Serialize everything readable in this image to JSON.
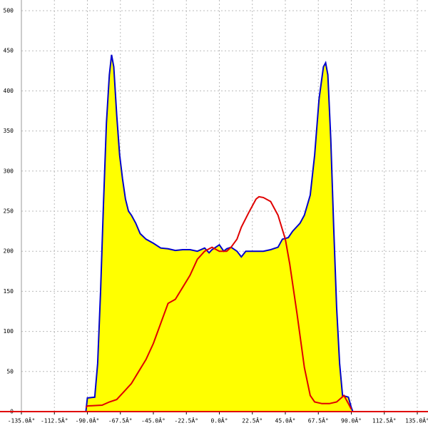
{
  "chart_data": {
    "type": "area",
    "xlim": [
      -135,
      135
    ],
    "ylim": [
      0,
      500
    ],
    "xticks": [
      {
        "value": -135,
        "label": "-135.0Â°"
      },
      {
        "value": -112.5,
        "label": "-112.5Â°"
      },
      {
        "value": -90,
        "label": "-90.0Â°"
      },
      {
        "value": -67.5,
        "label": "-67.5Â°"
      },
      {
        "value": -45,
        "label": "-45.0Â°"
      },
      {
        "value": -22.5,
        "label": "-22.5Â°"
      },
      {
        "value": 0,
        "label": "0.0Â°"
      },
      {
        "value": 22.5,
        "label": "22.5Â°"
      },
      {
        "value": 45,
        "label": "45.0Â°"
      },
      {
        "value": 67.5,
        "label": "67.5Â°"
      },
      {
        "value": 90,
        "label": "90.0Â°"
      },
      {
        "value": 112.5,
        "label": "112.5Â°"
      },
      {
        "value": 135,
        "label": "135.0Â°"
      }
    ],
    "yticks": [
      0,
      50,
      100,
      150,
      200,
      250,
      300,
      350,
      400,
      450,
      500
    ],
    "grid": true,
    "axis_color": "#e00000",
    "series": [
      {
        "color": "#0000cc",
        "fill": "#ffff00",
        "x": [
          -91,
          -90,
          -85,
          -83,
          -81,
          -79,
          -77,
          -75,
          -73.5,
          -72,
          -70,
          -68,
          -66,
          -64,
          -62,
          -60,
          -57,
          -54,
          -50,
          -45,
          -40,
          -35,
          -30,
          -25,
          -20,
          -15,
          -10,
          -7,
          -5,
          0,
          3,
          5,
          8,
          12,
          15,
          18,
          22,
          30,
          35,
          40,
          43,
          47,
          50,
          55,
          58,
          62,
          65,
          68,
          71,
          72.5,
          74,
          76,
          78,
          80,
          82,
          84,
          86,
          88,
          90,
          91
        ],
        "values": [
          0,
          17,
          18,
          60,
          150,
          260,
          360,
          420,
          445,
          430,
          370,
          320,
          290,
          265,
          250,
          245,
          235,
          222,
          215,
          210,
          204,
          203,
          201,
          202,
          202,
          200,
          204,
          198,
          202,
          208,
          200,
          203,
          205,
          200,
          193,
          200,
          200,
          200,
          202,
          205,
          215,
          217,
          225,
          235,
          245,
          270,
          320,
          390,
          430,
          435,
          420,
          340,
          230,
          130,
          60,
          20,
          19,
          18,
          5,
          0
        ]
      },
      {
        "color": "#e00000",
        "x": [
          -91,
          -90,
          -80,
          -75,
          -70,
          -65,
          -60,
          -55,
          -50,
          -45,
          -40,
          -35,
          -30,
          -25,
          -20,
          -15,
          -10,
          -5,
          0,
          5,
          8,
          12,
          15,
          20,
          25,
          27,
          30,
          35,
          40,
          45,
          48,
          53,
          58,
          62,
          65,
          70,
          75,
          80,
          85,
          88,
          90
        ],
        "values": [
          5,
          7,
          8,
          12,
          15,
          25,
          35,
          50,
          65,
          85,
          110,
          135,
          140,
          155,
          170,
          190,
          200,
          205,
          200,
          200,
          205,
          215,
          230,
          248,
          265,
          268,
          267,
          262,
          245,
          215,
          184,
          122,
          55,
          20,
          12,
          10,
          10,
          12,
          20,
          10,
          3
        ]
      }
    ]
  }
}
